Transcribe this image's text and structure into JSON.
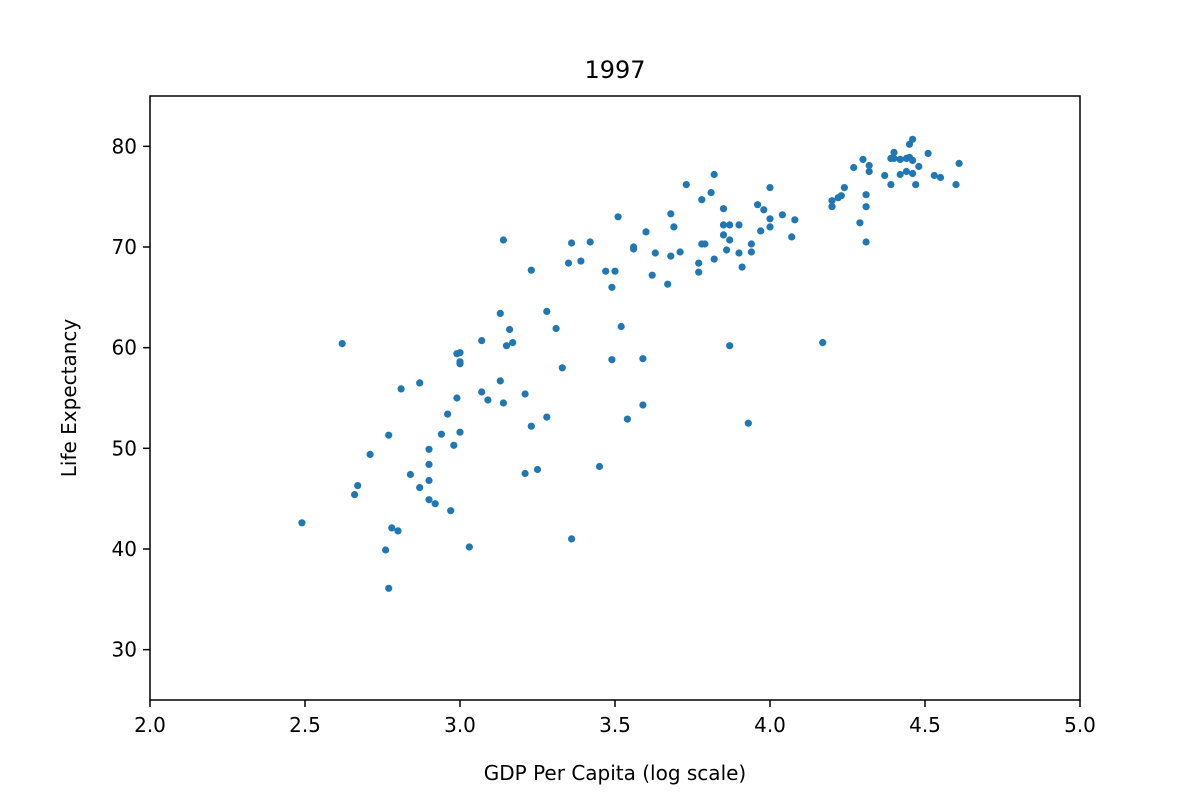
{
  "chart_data": {
    "type": "scatter",
    "title": "1997",
    "xlabel": "GDP Per Capita (log scale)",
    "ylabel": "Life Expectancy",
    "xlim": [
      2.0,
      5.0
    ],
    "ylim": [
      25,
      85
    ],
    "xticks": [
      2.0,
      2.5,
      3.0,
      3.5,
      4.0,
      4.5,
      5.0
    ],
    "xtick_labels": [
      "2.0",
      "2.5",
      "3.0",
      "3.5",
      "4.0",
      "4.5",
      "5.0"
    ],
    "yticks": [
      30,
      40,
      50,
      60,
      70,
      80
    ],
    "ytick_labels": [
      "30",
      "40",
      "50",
      "60",
      "70",
      "80"
    ],
    "grid": false,
    "marker_color": "#1f77b4",
    "points": [
      [
        2.49,
        42.6
      ],
      [
        2.62,
        60.4
      ],
      [
        2.66,
        45.4
      ],
      [
        2.67,
        46.3
      ],
      [
        2.71,
        49.4
      ],
      [
        2.76,
        39.9
      ],
      [
        2.77,
        51.3
      ],
      [
        2.77,
        36.1
      ],
      [
        2.78,
        42.1
      ],
      [
        2.8,
        41.8
      ],
      [
        2.81,
        55.9
      ],
      [
        2.84,
        47.4
      ],
      [
        2.87,
        56.5
      ],
      [
        2.87,
        46.1
      ],
      [
        2.9,
        49.9
      ],
      [
        2.9,
        48.4
      ],
      [
        2.9,
        46.8
      ],
      [
        2.9,
        44.9
      ],
      [
        2.92,
        44.5
      ],
      [
        2.94,
        51.4
      ],
      [
        2.96,
        53.4
      ],
      [
        2.97,
        43.8
      ],
      [
        2.98,
        50.3
      ],
      [
        2.99,
        59.4
      ],
      [
        3.0,
        59.5
      ],
      [
        3.0,
        58.6
      ],
      [
        3.0,
        58.4
      ],
      [
        2.99,
        55.0
      ],
      [
        3.0,
        51.6
      ],
      [
        3.03,
        40.2
      ],
      [
        3.07,
        60.7
      ],
      [
        3.07,
        55.6
      ],
      [
        3.09,
        54.8
      ],
      [
        3.13,
        63.4
      ],
      [
        3.13,
        56.7
      ],
      [
        3.14,
        54.5
      ],
      [
        3.15,
        60.2
      ],
      [
        3.14,
        70.7
      ],
      [
        3.16,
        61.8
      ],
      [
        3.17,
        60.5
      ],
      [
        3.21,
        55.4
      ],
      [
        3.21,
        47.5
      ],
      [
        3.23,
        52.2
      ],
      [
        3.23,
        67.7
      ],
      [
        3.25,
        47.9
      ],
      [
        3.28,
        63.6
      ],
      [
        3.28,
        53.1
      ],
      [
        3.31,
        61.9
      ],
      [
        3.33,
        58.0
      ],
      [
        3.35,
        68.4
      ],
      [
        3.36,
        70.4
      ],
      [
        3.36,
        41.0
      ],
      [
        3.39,
        68.6
      ],
      [
        3.42,
        70.5
      ],
      [
        3.45,
        48.2
      ],
      [
        3.47,
        67.6
      ],
      [
        3.49,
        58.8
      ],
      [
        3.49,
        66.0
      ],
      [
        3.5,
        67.6
      ],
      [
        3.51,
        73.0
      ],
      [
        3.52,
        62.1
      ],
      [
        3.54,
        52.9
      ],
      [
        3.56,
        70.0
      ],
      [
        3.56,
        69.8
      ],
      [
        3.59,
        58.9
      ],
      [
        3.59,
        54.3
      ],
      [
        3.6,
        71.5
      ],
      [
        3.62,
        67.2
      ],
      [
        3.63,
        69.4
      ],
      [
        3.67,
        66.3
      ],
      [
        3.68,
        73.3
      ],
      [
        3.68,
        69.1
      ],
      [
        3.69,
        72.0
      ],
      [
        3.71,
        69.5
      ],
      [
        3.73,
        76.2
      ],
      [
        3.77,
        68.4
      ],
      [
        3.77,
        67.5
      ],
      [
        3.78,
        70.3
      ],
      [
        3.78,
        74.7
      ],
      [
        3.79,
        70.3
      ],
      [
        3.81,
        75.4
      ],
      [
        3.82,
        68.8
      ],
      [
        3.82,
        77.2
      ],
      [
        3.85,
        73.8
      ],
      [
        3.85,
        72.2
      ],
      [
        3.85,
        71.2
      ],
      [
        3.86,
        69.7
      ],
      [
        3.87,
        72.2
      ],
      [
        3.87,
        70.7
      ],
      [
        3.87,
        60.2
      ],
      [
        3.9,
        69.4
      ],
      [
        3.9,
        72.2
      ],
      [
        3.91,
        68.0
      ],
      [
        3.93,
        52.5
      ],
      [
        3.94,
        70.3
      ],
      [
        3.94,
        69.5
      ],
      [
        3.96,
        74.2
      ],
      [
        3.97,
        71.6
      ],
      [
        3.98,
        73.7
      ],
      [
        4.0,
        72.0
      ],
      [
        4.0,
        72.8
      ],
      [
        4.0,
        75.9
      ],
      [
        4.04,
        73.2
      ],
      [
        4.07,
        71.0
      ],
      [
        4.08,
        72.7
      ],
      [
        4.17,
        60.5
      ],
      [
        4.2,
        74.6
      ],
      [
        4.2,
        74.0
      ],
      [
        4.22,
        74.9
      ],
      [
        4.23,
        75.1
      ],
      [
        4.24,
        75.9
      ],
      [
        4.27,
        77.9
      ],
      [
        4.29,
        72.4
      ],
      [
        4.3,
        78.7
      ],
      [
        4.31,
        75.2
      ],
      [
        4.31,
        74.0
      ],
      [
        4.31,
        70.5
      ],
      [
        4.32,
        78.1
      ],
      [
        4.32,
        77.5
      ],
      [
        4.37,
        77.1
      ],
      [
        4.39,
        76.2
      ],
      [
        4.39,
        78.8
      ],
      [
        4.4,
        79.4
      ],
      [
        4.4,
        78.8
      ],
      [
        4.42,
        77.2
      ],
      [
        4.42,
        78.7
      ],
      [
        4.44,
        78.8
      ],
      [
        4.44,
        77.5
      ],
      [
        4.45,
        80.2
      ],
      [
        4.46,
        80.7
      ],
      [
        4.45,
        78.9
      ],
      [
        4.46,
        77.3
      ],
      [
        4.46,
        78.6
      ],
      [
        4.47,
        76.2
      ],
      [
        4.48,
        78.0
      ],
      [
        4.51,
        79.3
      ],
      [
        4.53,
        77.1
      ],
      [
        4.55,
        76.9
      ],
      [
        4.6,
        76.2
      ],
      [
        4.61,
        78.3
      ]
    ]
  }
}
